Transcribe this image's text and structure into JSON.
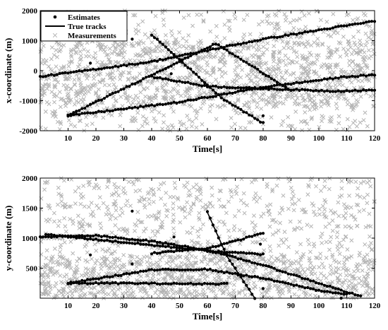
{
  "chart_data": [
    {
      "type": "scatter",
      "xlabel": "Time[s]",
      "ylabel": "x-coordinate (m)",
      "xlim": [
        0,
        120
      ],
      "ylim": [
        -2000,
        2000
      ],
      "xticks": [
        10,
        20,
        30,
        40,
        50,
        60,
        70,
        80,
        90,
        100,
        110,
        120
      ],
      "yticks": [
        -2000,
        -1000,
        0,
        1000,
        2000
      ],
      "legend": {
        "position": "top-left",
        "entries": [
          "Estimates",
          "True tracks",
          "Measurements"
        ]
      },
      "colors": {
        "measurements": "#b3b3b3",
        "tracks": "#000000",
        "estimates": "#000000"
      },
      "true_tracks": [
        {
          "x": [
            0,
            40,
            80,
            120
          ],
          "y": [
            -200,
            300,
            1050,
            1650
          ]
        },
        {
          "x": [
            10,
            63,
            89
          ],
          "y": [
            -1500,
            900,
            -600
          ]
        },
        {
          "x": [
            10,
            50,
            80,
            110,
            120
          ],
          "y": [
            -1500,
            -1050,
            -550,
            -200,
            -150
          ]
        },
        {
          "x": [
            40,
            55,
            65,
            80
          ],
          "y": [
            1200,
            -50,
            -900,
            -1750
          ]
        },
        {
          "x": [
            40,
            60,
            80,
            105,
            120
          ],
          "y": [
            -200,
            -520,
            -600,
            -680,
            -650
          ]
        }
      ],
      "outlier_estimates": [
        {
          "x": 18,
          "y": 250
        },
        {
          "x": 33,
          "y": 1050
        },
        {
          "x": 80,
          "y": -1500
        },
        {
          "x": 47,
          "y": -100
        }
      ],
      "measurement_count": 1500
    },
    {
      "type": "scatter",
      "xlabel": "Time[s]",
      "ylabel": "y-coordinate (m)",
      "xlim": [
        0,
        120
      ],
      "ylim": [
        0,
        2000
      ],
      "xticks": [
        10,
        20,
        30,
        40,
        50,
        60,
        70,
        80,
        90,
        100,
        110,
        120
      ],
      "yticks": [
        500,
        1000,
        1500,
        2000
      ],
      "colors": {
        "measurements": "#b3b3b3",
        "tracks": "#000000",
        "estimates": "#000000"
      },
      "true_tracks": [
        {
          "x": [
            0,
            20,
            40,
            60,
            80,
            100,
            115
          ],
          "y": [
            1020,
            1040,
            950,
            800,
            550,
            250,
            30
          ]
        },
        {
          "x": [
            10,
            40,
            60,
            80,
            100,
            110
          ],
          "y": [
            250,
            470,
            480,
            330,
            130,
            60
          ]
        },
        {
          "x": [
            10,
            30,
            50,
            67
          ],
          "y": [
            250,
            250,
            240,
            240
          ]
        },
        {
          "x": [
            40,
            60,
            70,
            80
          ],
          "y": [
            750,
            830,
            950,
            1090
          ]
        },
        {
          "x": [
            60,
            67,
            77
          ],
          "y": [
            1430,
            700,
            0
          ]
        },
        {
          "x": [
            2,
            15,
            45,
            62,
            80
          ],
          "y": [
            1060,
            1000,
            860,
            780,
            730
          ]
        }
      ],
      "outlier_estimates": [
        {
          "x": 18,
          "y": 720
        },
        {
          "x": 33,
          "y": 1450
        },
        {
          "x": 33,
          "y": 570
        },
        {
          "x": 48,
          "y": 1020
        },
        {
          "x": 63,
          "y": 1120
        },
        {
          "x": 79,
          "y": 900
        },
        {
          "x": 80,
          "y": 160
        },
        {
          "x": 108,
          "y": 0
        }
      ],
      "measurement_count": 1500
    }
  ]
}
